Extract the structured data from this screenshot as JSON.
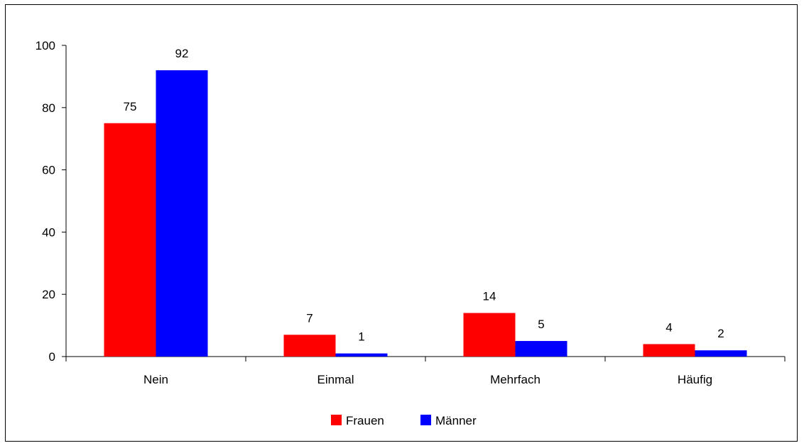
{
  "chart_data": {
    "type": "bar",
    "categories": [
      "Nein",
      "Einmal",
      "Mehrfach",
      "Häufig"
    ],
    "series": [
      {
        "name": "Frauen",
        "values": [
          75,
          7,
          14,
          4
        ],
        "color": "#ff0000"
      },
      {
        "name": "Männer",
        "values": [
          92,
          1,
          5,
          2
        ],
        "color": "#0000ff"
      }
    ],
    "yticks": [
      "0",
      "20",
      "40",
      "60",
      "80",
      "100"
    ],
    "ylim": [
      0,
      100
    ],
    "legend_position": "bottom-center",
    "grid": false
  }
}
